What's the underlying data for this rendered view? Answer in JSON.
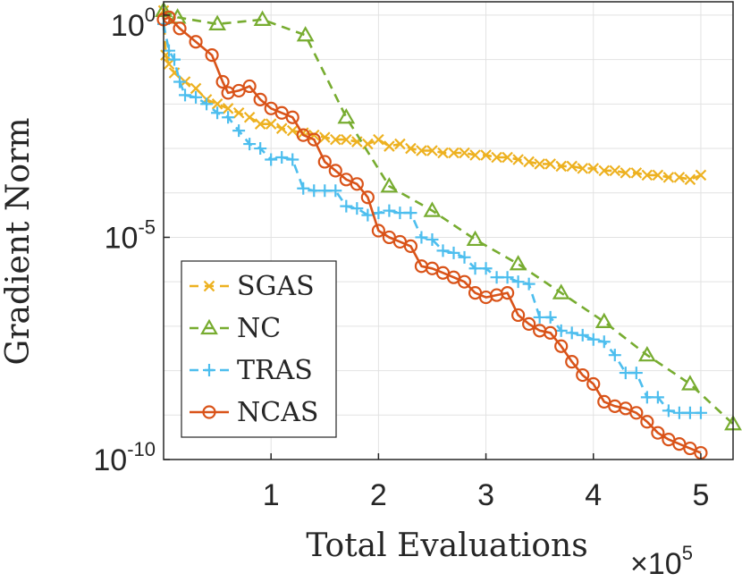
{
  "chart_data": {
    "type": "line",
    "title": "",
    "xlabel": "Total Evaluations",
    "ylabel": "Gradient Norm",
    "x_scale_label": {
      "base": "×10",
      "exp": "5"
    },
    "x_ticks": [
      {
        "value": 1,
        "label": "1"
      },
      {
        "value": 2,
        "label": "2"
      },
      {
        "value": 3,
        "label": "3"
      },
      {
        "value": 4,
        "label": "4"
      },
      {
        "value": 5,
        "label": "5"
      }
    ],
    "y_ticks": [
      {
        "exp": 0,
        "base": "10",
        "sup": "0"
      },
      {
        "exp": -5,
        "base": "10",
        "sup": "-5"
      },
      {
        "exp": -10,
        "base": "10",
        "sup": "-10"
      }
    ],
    "xlim": [
      0,
      5.3
    ],
    "ylim_log10": [
      -10,
      0.3
    ],
    "y_scale": "log",
    "grid": true,
    "legend_position": "bottom-left",
    "series": [
      {
        "name": "SGAS",
        "color": "#EDB120",
        "marker": "x",
        "dashed": true,
        "x": [
          0,
          0.02,
          0.05,
          0.1,
          0.2,
          0.3,
          0.4,
          0.5,
          0.6,
          0.7,
          0.8,
          0.9,
          1.0,
          1.1,
          1.2,
          1.3,
          1.4,
          1.5,
          1.6,
          1.7,
          1.8,
          1.9,
          2.0,
          2.1,
          2.2,
          2.3,
          2.4,
          2.5,
          2.6,
          2.7,
          2.8,
          2.9,
          3.0,
          3.1,
          3.2,
          3.3,
          3.4,
          3.5,
          3.6,
          3.7,
          3.8,
          3.9,
          4.0,
          4.1,
          4.2,
          4.3,
          4.4,
          4.5,
          4.6,
          4.7,
          4.8,
          4.9,
          5.0
        ],
        "y_log10": [
          0.1,
          -0.9,
          -1.1,
          -1.3,
          -1.5,
          -1.65,
          -1.9,
          -2.0,
          -2.1,
          -2.2,
          -2.3,
          -2.45,
          -2.45,
          -2.55,
          -2.6,
          -2.65,
          -2.7,
          -2.75,
          -2.8,
          -2.8,
          -2.85,
          -2.9,
          -2.8,
          -2.95,
          -2.9,
          -3.0,
          -3.05,
          -3.05,
          -3.1,
          -3.1,
          -3.1,
          -3.15,
          -3.15,
          -3.2,
          -3.2,
          -3.25,
          -3.3,
          -3.35,
          -3.35,
          -3.4,
          -3.4,
          -3.45,
          -3.45,
          -3.5,
          -3.5,
          -3.55,
          -3.55,
          -3.6,
          -3.6,
          -3.65,
          -3.65,
          -3.7,
          -3.6
        ]
      },
      {
        "name": "NC",
        "color": "#77AC30",
        "marker": "triangle",
        "dashed": true,
        "x": [
          0,
          0.13,
          0.5,
          0.92,
          1.32,
          1.7,
          2.1,
          2.5,
          2.9,
          3.3,
          3.7,
          4.1,
          4.5,
          4.9,
          5.3
        ],
        "y_log10": [
          0.1,
          -0.05,
          -0.2,
          -0.1,
          -0.45,
          -2.3,
          -3.85,
          -4.4,
          -5.05,
          -5.6,
          -6.25,
          -6.9,
          -7.65,
          -8.3,
          -9.2
        ]
      },
      {
        "name": "TRAS",
        "color": "#4DBEEE",
        "marker": "plus",
        "dashed": true,
        "x": [
          0,
          0.05,
          0.1,
          0.15,
          0.2,
          0.3,
          0.4,
          0.5,
          0.6,
          0.7,
          0.8,
          0.9,
          1.0,
          1.1,
          1.2,
          1.3,
          1.4,
          1.5,
          1.6,
          1.7,
          1.8,
          1.9,
          2.0,
          2.1,
          2.2,
          2.3,
          2.4,
          2.5,
          2.6,
          2.7,
          2.8,
          2.9,
          3.0,
          3.1,
          3.2,
          3.3,
          3.4,
          3.5,
          3.6,
          3.7,
          3.8,
          3.9,
          4.0,
          4.1,
          4.2,
          4.3,
          4.4,
          4.5,
          4.6,
          4.7,
          4.8,
          4.9,
          5.0
        ],
        "y_log10": [
          -0.2,
          -0.8,
          -1.0,
          -1.5,
          -1.8,
          -1.85,
          -2.0,
          -2.2,
          -2.3,
          -2.6,
          -2.9,
          -3.0,
          -3.25,
          -3.2,
          -3.25,
          -3.9,
          -3.95,
          -3.95,
          -3.95,
          -4.3,
          -4.35,
          -4.5,
          -4.45,
          -4.4,
          -4.45,
          -4.45,
          -5.0,
          -5.05,
          -5.3,
          -5.35,
          -5.45,
          -5.7,
          -5.7,
          -5.9,
          -5.9,
          -6.0,
          -6.05,
          -6.8,
          -6.8,
          -7.1,
          -7.15,
          -7.2,
          -7.3,
          -7.35,
          -7.65,
          -8.05,
          -8.05,
          -8.6,
          -8.6,
          -8.9,
          -8.95,
          -8.95,
          -8.95
        ]
      },
      {
        "name": "NCAS",
        "color": "#D95319",
        "marker": "circle",
        "dashed": false,
        "x": [
          0,
          0.05,
          0.15,
          0.3,
          0.45,
          0.55,
          0.6,
          0.7,
          0.8,
          0.9,
          1.0,
          1.1,
          1.2,
          1.3,
          1.4,
          1.5,
          1.6,
          1.7,
          1.8,
          1.9,
          2.0,
          2.1,
          2.2,
          2.3,
          2.4,
          2.5,
          2.6,
          2.7,
          2.8,
          2.9,
          3.0,
          3.1,
          3.2,
          3.3,
          3.4,
          3.5,
          3.6,
          3.7,
          3.8,
          3.9,
          4.0,
          4.1,
          4.2,
          4.3,
          4.4,
          4.5,
          4.6,
          4.7,
          4.8,
          4.9,
          5.0
        ],
        "y_log10": [
          -0.1,
          -0.05,
          -0.3,
          -0.6,
          -0.9,
          -1.5,
          -1.75,
          -1.7,
          -1.6,
          -1.9,
          -2.1,
          -2.2,
          -2.3,
          -2.7,
          -2.8,
          -3.3,
          -3.5,
          -3.7,
          -3.8,
          -4.1,
          -4.85,
          -5.0,
          -5.1,
          -5.2,
          -5.65,
          -5.7,
          -5.8,
          -5.9,
          -6.0,
          -6.25,
          -6.35,
          -6.3,
          -6.25,
          -6.75,
          -6.95,
          -7.1,
          -7.15,
          -7.45,
          -7.8,
          -8.1,
          -8.3,
          -8.7,
          -8.8,
          -8.85,
          -8.95,
          -9.15,
          -9.4,
          -9.55,
          -9.65,
          -9.75,
          -9.85
        ]
      }
    ]
  }
}
